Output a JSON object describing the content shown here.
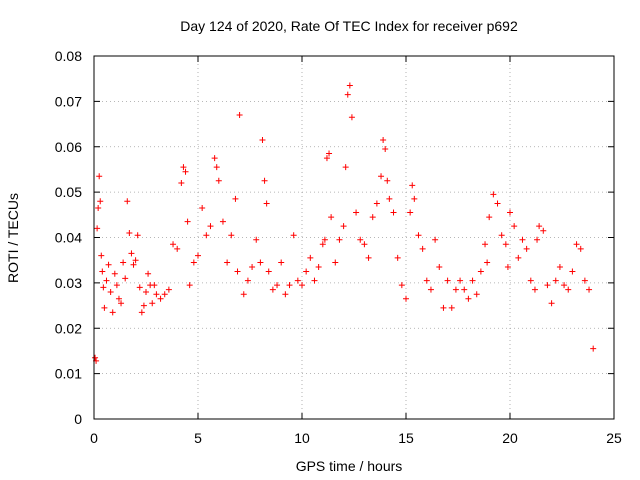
{
  "chart_data": {
    "type": "scatter",
    "title": "Day 124 of 2020, Rate Of TEC Index for receiver p692",
    "xlabel": "GPS time / hours",
    "ylabel": "ROTI / TECUs",
    "xlim": [
      0,
      25
    ],
    "ylim": [
      0,
      0.08
    ],
    "xticks": [
      0,
      5,
      10,
      15,
      20,
      25
    ],
    "xtick_labels": [
      "0",
      "5",
      "10",
      "15",
      "20",
      "25"
    ],
    "yticks": [
      0,
      0.01,
      0.02,
      0.03,
      0.04,
      0.05,
      0.06,
      0.07,
      0.08
    ],
    "ytick_labels": [
      "0",
      "0.01",
      "0.02",
      "0.03",
      "0.04",
      "0.05",
      "0.06",
      "0.07",
      "0.08"
    ],
    "grid": true,
    "marker": "plus",
    "color": "#ff0000",
    "series": [
      {
        "x": [
          0.05,
          0.1,
          0.15,
          0.2,
          0.25,
          0.3,
          0.35,
          0.4,
          0.45,
          0.5,
          0.6,
          0.7,
          0.8,
          0.9,
          1.0,
          1.1,
          1.2,
          1.3,
          1.4,
          1.5,
          1.6,
          1.7,
          1.8,
          1.9,
          2.0,
          2.1,
          2.2,
          2.3,
          2.4,
          2.5,
          2.6,
          2.7,
          2.8,
          2.9,
          3.0,
          3.2,
          3.4,
          3.6,
          3.8,
          4.0,
          4.2,
          4.3,
          4.4,
          4.5,
          4.6,
          4.8,
          5.0,
          5.2,
          5.4,
          5.6,
          5.8,
          5.9,
          6.0,
          6.2,
          6.4,
          6.6,
          6.8,
          6.9,
          7.0,
          7.2,
          7.4,
          7.6,
          7.8,
          8.0,
          8.1,
          8.2,
          8.3,
          8.4,
          8.6,
          8.8,
          9.0,
          9.2,
          9.4,
          9.6,
          9.8,
          10.0,
          10.2,
          10.4,
          10.6,
          10.8,
          11.0,
          11.1,
          11.2,
          11.3,
          11.4,
          11.6,
          11.8,
          12.0,
          12.1,
          12.2,
          12.3,
          12.4,
          12.6,
          12.8,
          13.0,
          13.2,
          13.4,
          13.6,
          13.8,
          13.9,
          14.0,
          14.1,
          14.2,
          14.4,
          14.6,
          14.8,
          15.0,
          15.2,
          15.3,
          15.4,
          15.6,
          15.8,
          16.0,
          16.2,
          16.4,
          16.6,
          16.8,
          17.0,
          17.2,
          17.4,
          17.6,
          17.8,
          18.0,
          18.2,
          18.4,
          18.6,
          18.8,
          18.9,
          19.0,
          19.2,
          19.4,
          19.6,
          19.8,
          19.9,
          20.0,
          20.2,
          20.4,
          20.6,
          20.8,
          21.0,
          21.2,
          21.3,
          21.4,
          21.6,
          21.8,
          22.0,
          22.2,
          22.4,
          22.6,
          22.8,
          23.0,
          23.2,
          23.4,
          23.6,
          23.8,
          24.0
        ],
        "y": [
          0.0135,
          0.0128,
          0.042,
          0.0465,
          0.0535,
          0.048,
          0.036,
          0.0325,
          0.029,
          0.0245,
          0.0305,
          0.034,
          0.028,
          0.0235,
          0.032,
          0.0295,
          0.0265,
          0.0255,
          0.0345,
          0.031,
          0.048,
          0.041,
          0.0365,
          0.034,
          0.035,
          0.0405,
          0.029,
          0.0235,
          0.025,
          0.028,
          0.032,
          0.0295,
          0.0255,
          0.0295,
          0.0275,
          0.0265,
          0.0275,
          0.0285,
          0.0385,
          0.0375,
          0.052,
          0.0555,
          0.0545,
          0.0435,
          0.0295,
          0.0345,
          0.036,
          0.0465,
          0.0405,
          0.0425,
          0.0575,
          0.0555,
          0.0525,
          0.0435,
          0.0345,
          0.0405,
          0.0485,
          0.0325,
          0.067,
          0.0275,
          0.0305,
          0.0335,
          0.0395,
          0.0345,
          0.0615,
          0.0525,
          0.0475,
          0.0325,
          0.0285,
          0.0295,
          0.0345,
          0.0275,
          0.0295,
          0.0405,
          0.0305,
          0.0295,
          0.0325,
          0.0355,
          0.0305,
          0.0335,
          0.0385,
          0.0395,
          0.0575,
          0.0585,
          0.0445,
          0.0345,
          0.0395,
          0.0425,
          0.0555,
          0.0715,
          0.0735,
          0.0665,
          0.0455,
          0.0395,
          0.0385,
          0.0355,
          0.0445,
          0.0475,
          0.0535,
          0.0615,
          0.0595,
          0.0525,
          0.0485,
          0.0455,
          0.0355,
          0.0295,
          0.0265,
          0.0455,
          0.0515,
          0.0485,
          0.0405,
          0.0375,
          0.0305,
          0.0285,
          0.0395,
          0.0335,
          0.0245,
          0.0305,
          0.0245,
          0.0285,
          0.0305,
          0.0285,
          0.0265,
          0.0305,
          0.0275,
          0.0325,
          0.0385,
          0.0345,
          0.0445,
          0.0495,
          0.0475,
          0.0405,
          0.0385,
          0.0335,
          0.0455,
          0.0425,
          0.0355,
          0.0395,
          0.0375,
          0.0305,
          0.0285,
          0.0395,
          0.0425,
          0.0415,
          0.0295,
          0.0255,
          0.0305,
          0.0335,
          0.0295,
          0.0285,
          0.0325,
          0.0385,
          0.0375,
          0.0305,
          0.0285,
          0.0155
        ]
      }
    ]
  }
}
